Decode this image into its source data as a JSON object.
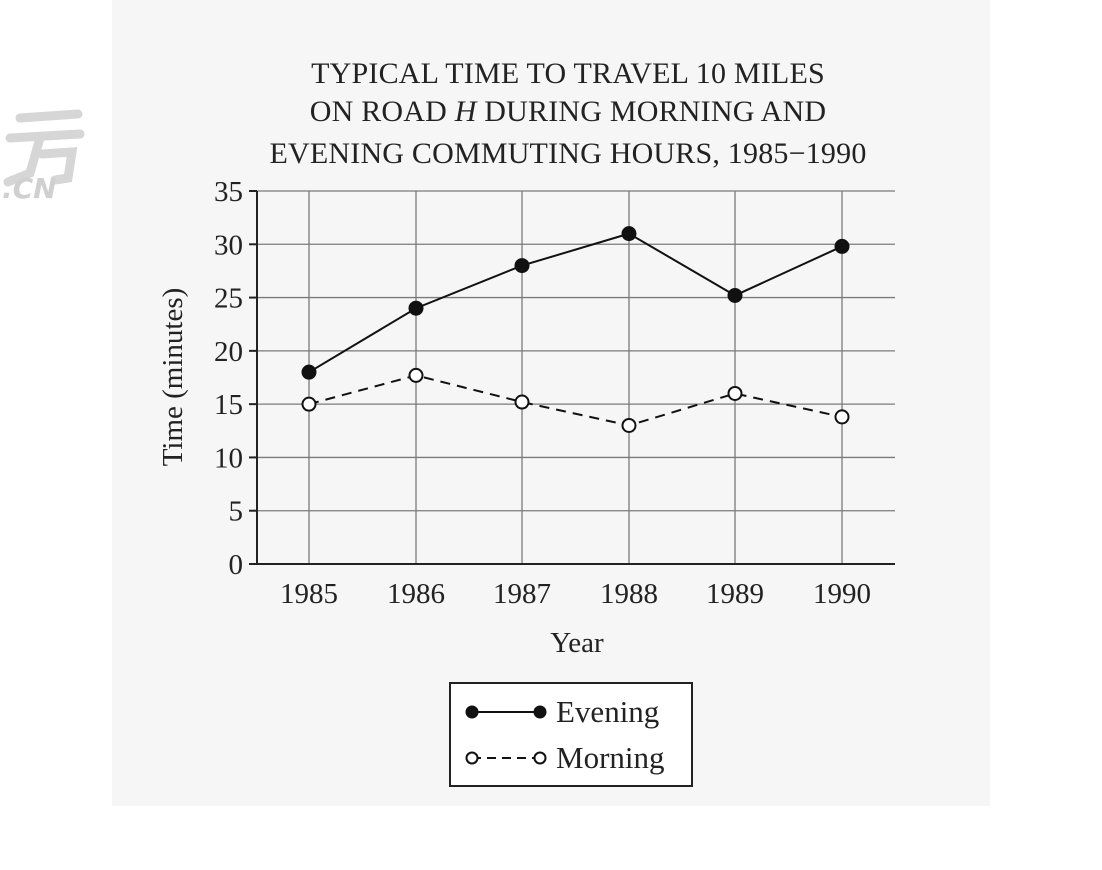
{
  "watermark": {
    "text": ".CN"
  },
  "chart_data": {
    "type": "line",
    "title_lines": [
      "TYPICAL TIME TO TRAVEL 10 MILES",
      [
        "ON ROAD ",
        "H",
        " DURING MORNING AND"
      ],
      "EVENING COMMUTING HOURS, 1985−1990"
    ],
    "xlabel": "Year",
    "ylabel": "Time (minutes)",
    "x": [
      "1985",
      "1986",
      "1987",
      "1988",
      "1989",
      "1990"
    ],
    "ylim": [
      0,
      35
    ],
    "yticks": [
      0,
      5,
      10,
      15,
      20,
      25,
      30,
      35
    ],
    "grid": true,
    "legend_position": "bottom-center",
    "series": [
      {
        "name": "Evening",
        "values": [
          18,
          24,
          28,
          31,
          25.2,
          29.8
        ],
        "marker": "filled-circle",
        "line": "solid",
        "color": "#111111"
      },
      {
        "name": "Morning",
        "values": [
          15,
          17.7,
          15.2,
          13,
          16,
          13.8
        ],
        "marker": "open-circle",
        "line": "dashed",
        "color": "#111111"
      }
    ]
  }
}
